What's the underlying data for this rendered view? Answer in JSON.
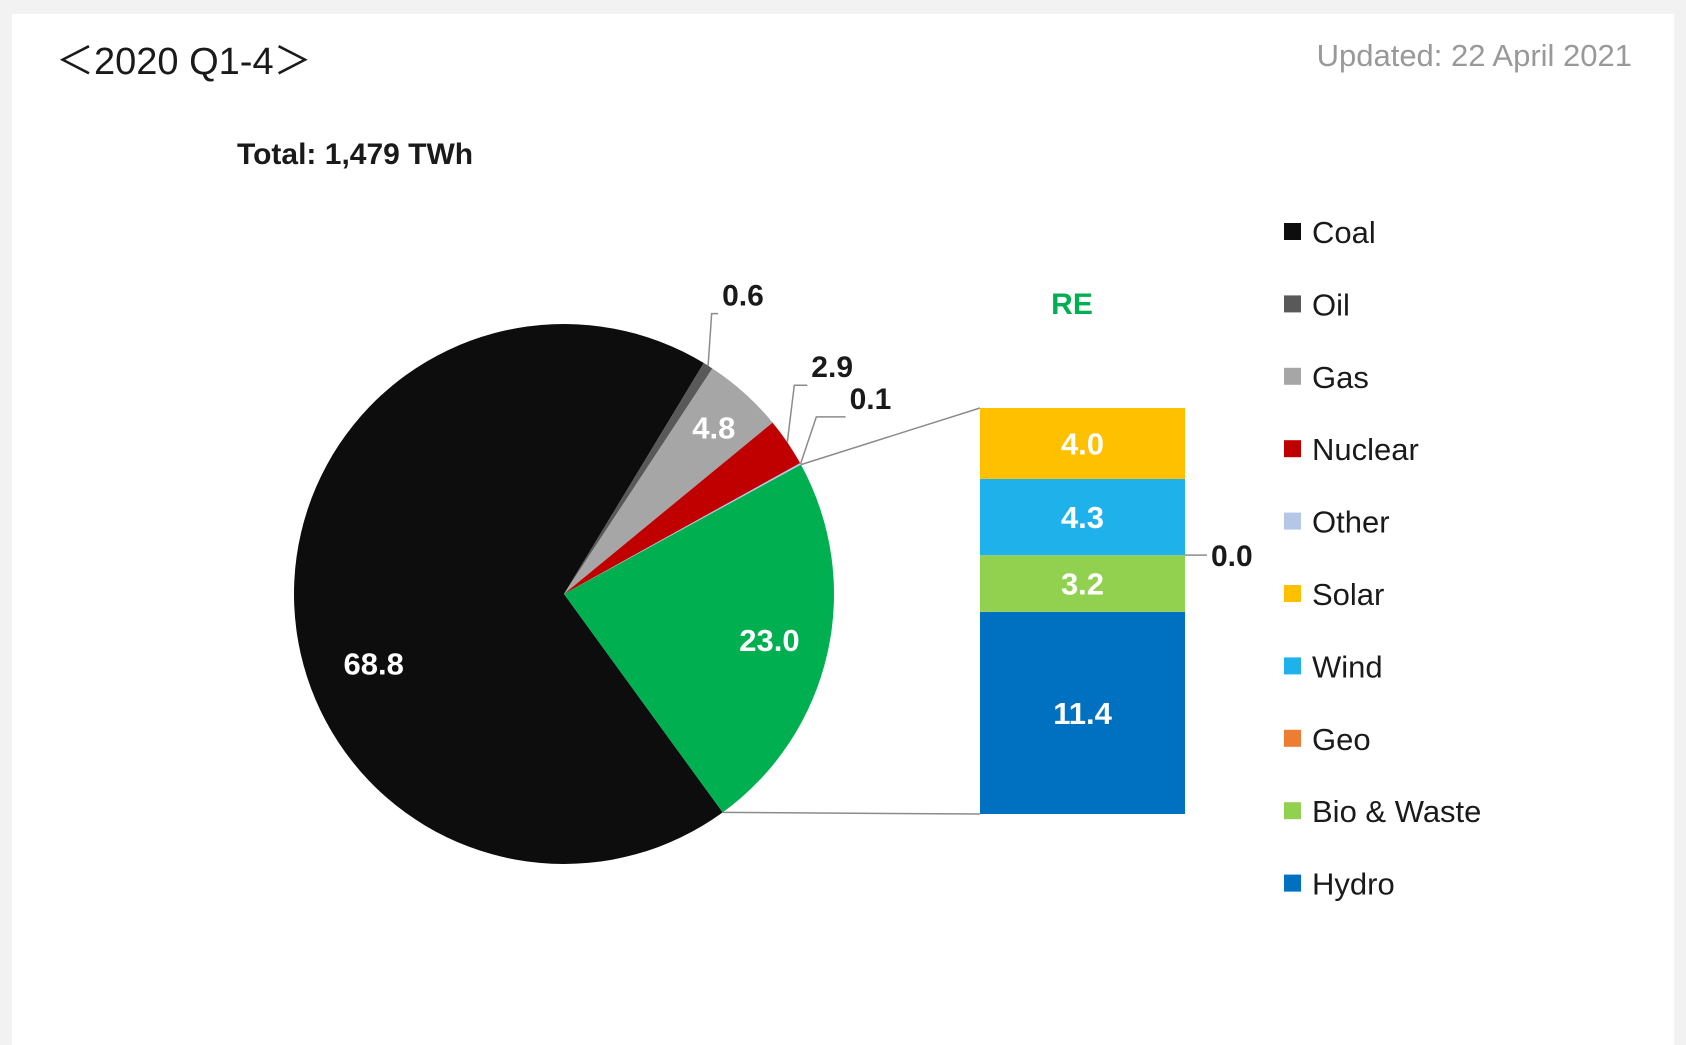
{
  "header": {
    "period": "＜2020 Q1-4＞",
    "updated": "Updated: 22 April 2021"
  },
  "chart_data": {
    "type": "pie",
    "total_label": "Total: 1,479 TWh",
    "slices": [
      {
        "name": "Coal",
        "value": 68.8,
        "label": "68.8",
        "color": "#0d0d0d"
      },
      {
        "name": "Oil",
        "value": 0.6,
        "label": "0.6",
        "color": "#595959"
      },
      {
        "name": "Gas",
        "value": 4.8,
        "label": "4.8",
        "color": "#a6a6a6"
      },
      {
        "name": "Nuclear",
        "value": 2.9,
        "label": "2.9",
        "color": "#c00000"
      },
      {
        "name": "Other",
        "value": 0.1,
        "label": "0.1",
        "color": "#b4c7e7"
      },
      {
        "name": "RE",
        "value": 23.0,
        "label": "23.0",
        "color": "#00b050"
      }
    ],
    "re_breakdown": {
      "title": "RE",
      "title_color": "#00b050",
      "segments": [
        {
          "name": "Hydro",
          "value": 11.4,
          "label": "11.4",
          "color": "#0070c0"
        },
        {
          "name": "Bio & Waste",
          "value": 3.2,
          "label": "3.2",
          "color": "#92d050"
        },
        {
          "name": "Geo",
          "value": 0.0,
          "label": "0.0",
          "color": "#ed7d31"
        },
        {
          "name": "Wind",
          "value": 4.3,
          "label": "4.3",
          "color": "#1fb2ea"
        },
        {
          "name": "Solar",
          "value": 4.0,
          "label": "4.0",
          "color": "#ffc000"
        }
      ]
    },
    "legend": [
      {
        "name": "Coal",
        "color": "#0d0d0d"
      },
      {
        "name": "Oil",
        "color": "#595959"
      },
      {
        "name": "Gas",
        "color": "#a6a6a6"
      },
      {
        "name": "Nuclear",
        "color": "#c00000"
      },
      {
        "name": "Other",
        "color": "#b4c7e7"
      },
      {
        "name": "Solar",
        "color": "#ffc000"
      },
      {
        "name": "Wind",
        "color": "#1fb2ea"
      },
      {
        "name": "Geo",
        "color": "#ed7d31"
      },
      {
        "name": "Bio & Waste",
        "color": "#92d050"
      },
      {
        "name": "Hydro",
        "color": "#0070c0"
      }
    ],
    "legend_placement": "right"
  }
}
